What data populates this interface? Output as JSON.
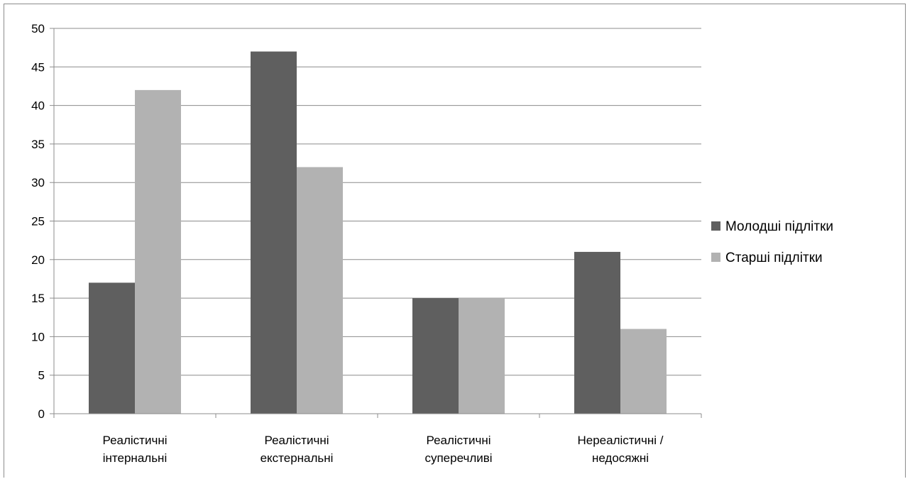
{
  "chart_data": {
    "type": "bar",
    "title": "",
    "xlabel": "",
    "ylabel": "",
    "categories": [
      [
        "Реалістичні",
        "інтернальні"
      ],
      [
        "Реалістичні",
        "екстернальні"
      ],
      [
        "Реалістичні",
        "суперечливі"
      ],
      [
        "Нереалістичні /",
        "недосяжні"
      ]
    ],
    "series": [
      {
        "name": "Молодші підлітки",
        "values": [
          17,
          47,
          15,
          21
        ],
        "color": "#5f5f5f"
      },
      {
        "name": "Старші підлітки",
        "values": [
          42,
          32,
          15,
          11
        ],
        "color": "#b2b2b2"
      }
    ],
    "ylim": [
      0,
      50
    ],
    "yticks": [
      0,
      5,
      10,
      15,
      20,
      25,
      30,
      35,
      40,
      45,
      50
    ],
    "grid": true,
    "legend": "right"
  }
}
